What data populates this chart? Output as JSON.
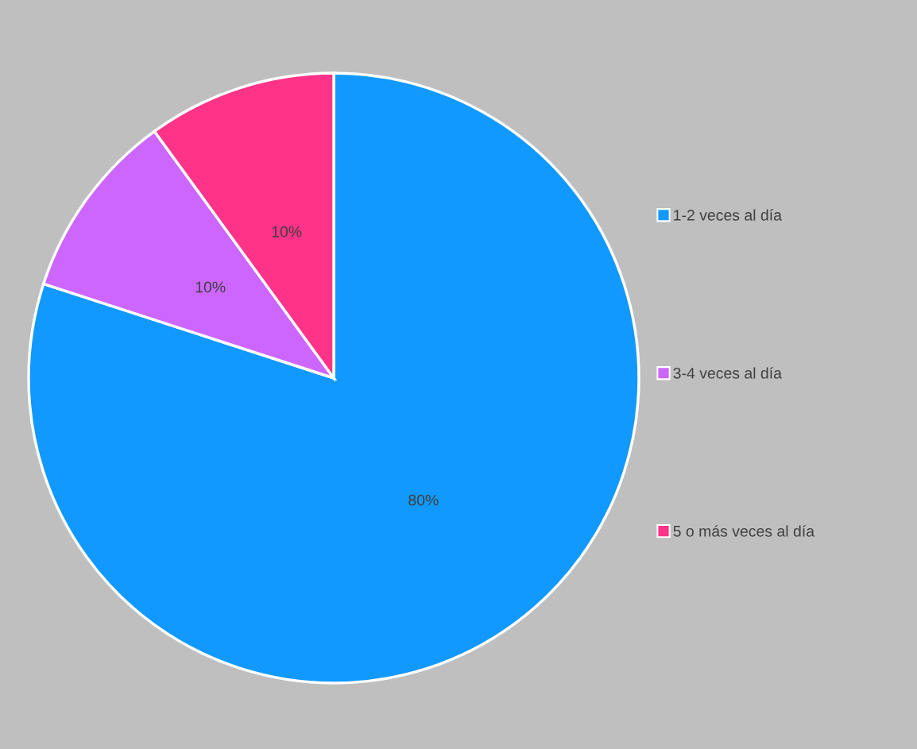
{
  "chart_data": {
    "type": "pie",
    "categories": [
      "1-2 veces al día",
      "3-4 veces al día",
      "5 o más veces al día"
    ],
    "values": [
      80,
      10,
      10
    ],
    "colors": [
      "#1199ff",
      "#cc66ff",
      "#ff3388"
    ],
    "value_labels": [
      "80%",
      "10%",
      "10%"
    ],
    "legend": "right"
  }
}
